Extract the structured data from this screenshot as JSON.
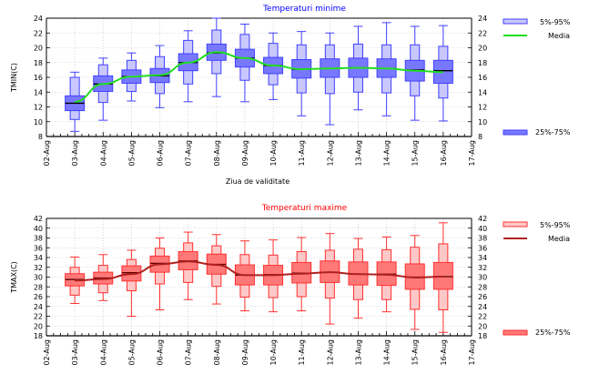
{
  "chart_data": [
    {
      "type": "boxplot",
      "title": "Temperaturi minime",
      "xlabel": "Ziua de validitate",
      "ylabel": "TMIN(C)",
      "ylim": [
        8,
        24
      ],
      "yticks": [
        8,
        10,
        12,
        14,
        16,
        18,
        20,
        22,
        24
      ],
      "xtick_labels": [
        "02-Aug",
        "03-Aug",
        "04-Aug",
        "05-Aug",
        "06-Aug",
        "07-Aug",
        "08-Aug",
        "09-Aug",
        "10-Aug",
        "11-Aug",
        "12-Aug",
        "13-Aug",
        "14-Aug",
        "15-Aug",
        "16-Aug",
        "17-Aug"
      ],
      "grid": true,
      "legend": [
        "5%-95%",
        "Media",
        "25%-75%"
      ],
      "legend_position": "right",
      "colors": {
        "title": "#0000ff",
        "box_outer": "#c8c8ff",
        "box_inner": "#7878ff",
        "edge": "#4040ff",
        "mean_line": "#22dd22",
        "median": "#000000"
      },
      "categories": [
        "03-Aug",
        "04-Aug",
        "05-Aug",
        "06-Aug",
        "07-Aug",
        "08-Aug",
        "09-Aug",
        "10-Aug",
        "11-Aug",
        "12-Aug",
        "13-Aug",
        "14-Aug",
        "15-Aug",
        "16-Aug"
      ],
      "whisker_low": [
        8.7,
        10.2,
        12.8,
        11.9,
        12.7,
        13.4,
        12.7,
        13.0,
        10.8,
        9.6,
        11.6,
        10.8,
        10.2,
        10.1
      ],
      "outer_low": [
        10.3,
        12.6,
        14.1,
        13.8,
        15.1,
        16.5,
        15.6,
        15.0,
        13.9,
        13.8,
        14.0,
        13.9,
        13.5,
        13.2
      ],
      "q1": [
        11.5,
        14.1,
        15.2,
        15.3,
        16.9,
        18.3,
        17.4,
        16.5,
        15.9,
        16.0,
        16.0,
        16.0,
        15.5,
        15.2
      ],
      "median": [
        12.5,
        15.1,
        16.1,
        16.2,
        18.0,
        19.3,
        18.6,
        17.6,
        17.1,
        17.2,
        17.3,
        17.2,
        17.0,
        16.9
      ],
      "q3": [
        13.5,
        16.2,
        17.0,
        17.2,
        19.2,
        20.5,
        19.8,
        18.7,
        18.4,
        18.5,
        18.6,
        18.5,
        18.3,
        18.3
      ],
      "outer_high": [
        16.0,
        17.7,
        18.3,
        18.8,
        21.0,
        22.4,
        21.8,
        20.6,
        20.4,
        20.4,
        20.5,
        20.4,
        20.4,
        20.2
      ],
      "whisker_high": [
        16.7,
        18.6,
        19.3,
        20.3,
        22.3,
        24.0,
        23.2,
        22.0,
        22.2,
        22.0,
        22.9,
        23.4,
        22.9,
        23.0
      ],
      "mean": [
        12.7,
        15.1,
        16.1,
        16.3,
        18.0,
        19.4,
        18.6,
        17.6,
        17.1,
        17.2,
        17.3,
        17.2,
        16.9,
        16.7
      ]
    },
    {
      "type": "boxplot",
      "title": "Temperaturi maxime",
      "xlabel": "",
      "ylabel": "TMAX(C)",
      "ylim": [
        18,
        42
      ],
      "yticks": [
        18,
        20,
        22,
        24,
        26,
        28,
        30,
        32,
        34,
        36,
        38,
        40,
        42
      ],
      "xtick_labels": [
        "02-Aug",
        "03-Aug",
        "04-Aug",
        "05-Aug",
        "06-Aug",
        "07-Aug",
        "08-Aug",
        "09-Aug",
        "10-Aug",
        "11-Aug",
        "12-Aug",
        "13-Aug",
        "14-Aug",
        "15-Aug",
        "16-Aug",
        "17-Aug"
      ],
      "grid": true,
      "legend": [
        "5%-95%",
        "Media",
        "25%-75%"
      ],
      "legend_position": "right",
      "colors": {
        "title": "#ff0000",
        "box_outer": "#ffc8c8",
        "box_inner": "#ff7878",
        "edge": "#ff3030",
        "mean_line": "#b02020",
        "median": "#600000"
      },
      "categories": [
        "03-Aug",
        "04-Aug",
        "05-Aug",
        "06-Aug",
        "07-Aug",
        "08-Aug",
        "09-Aug",
        "10-Aug",
        "11-Aug",
        "12-Aug",
        "13-Aug",
        "14-Aug",
        "15-Aug",
        "16-Aug"
      ],
      "whisker_low": [
        24.6,
        25.2,
        22.0,
        23.3,
        25.4,
        24.5,
        23.1,
        22.9,
        23.1,
        20.4,
        21.6,
        22.9,
        19.3,
        18.7
      ],
      "outer_low": [
        26.3,
        26.8,
        27.2,
        28.6,
        28.9,
        28.1,
        25.9,
        25.8,
        26.0,
        25.7,
        25.4,
        25.4,
        23.4,
        23.3
      ],
      "q1": [
        28.2,
        28.6,
        29.2,
        31.0,
        31.5,
        30.6,
        28.4,
        28.4,
        28.8,
        28.9,
        28.4,
        28.3,
        27.5,
        27.5
      ],
      "median": [
        29.5,
        29.8,
        30.9,
        32.8,
        33.3,
        32.6,
        30.4,
        30.5,
        30.8,
        31.0,
        30.6,
        30.6,
        30.0,
        30.1
      ],
      "q3": [
        30.7,
        31.0,
        32.3,
        34.3,
        35.2,
        34.7,
        32.5,
        32.4,
        33.0,
        33.3,
        33.1,
        33.1,
        32.7,
        33.0
      ],
      "outer_high": [
        32.0,
        32.4,
        33.6,
        35.9,
        37.0,
        36.4,
        34.6,
        34.5,
        35.2,
        35.5,
        35.7,
        35.6,
        36.1,
        36.8
      ],
      "whisker_high": [
        34.1,
        34.6,
        35.5,
        38.0,
        39.2,
        38.7,
        37.4,
        37.6,
        38.1,
        38.9,
        37.9,
        38.2,
        38.5,
        41.1
      ],
      "mean": [
        29.3,
        29.6,
        30.6,
        32.6,
        33.2,
        32.5,
        30.4,
        30.4,
        30.7,
        31.0,
        30.6,
        30.5,
        29.9,
        30.1
      ]
    }
  ]
}
